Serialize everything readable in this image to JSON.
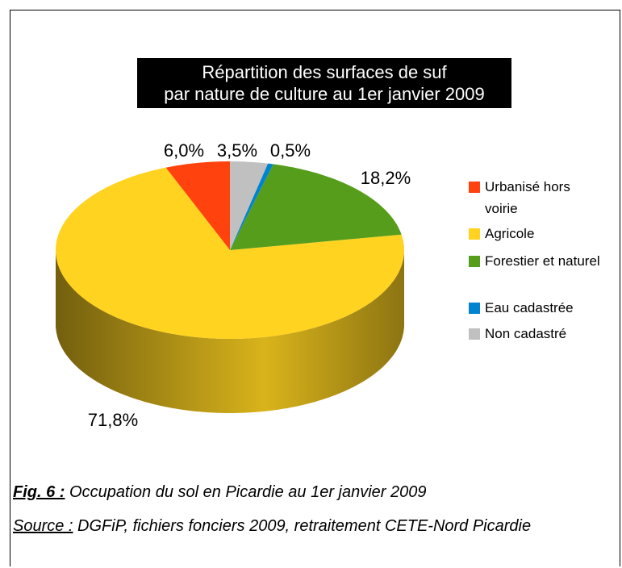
{
  "chart_data": {
    "type": "pie3d",
    "title": [
      "Répartition des surfaces de suf",
      "par nature de culture au 1er janvier 2009"
    ],
    "categories": [
      "Urbanisé hors voirie",
      "Agricole",
      "Forestier et naturel",
      "Eau cadastrée",
      "Non cadastré"
    ],
    "values": [
      6.0,
      71.8,
      18.2,
      0.5,
      3.5
    ],
    "value_labels": [
      "6,0%",
      "71,8%",
      "18,2%",
      "0,5%",
      "3,5%"
    ],
    "colors": [
      "#ff420e",
      "#ffd320",
      "#579d1c",
      "#0084d1",
      "#c0c0c0"
    ],
    "legend": "right"
  },
  "caption": {
    "figure": "Fig. 6 :",
    "text": " Occupation du sol en Picardie au 1er janvier 2009"
  },
  "source": {
    "label": "Source :",
    "text": " DGFiP, fichiers fonciers 2009, retraitement CETE-Nord Picardie"
  }
}
